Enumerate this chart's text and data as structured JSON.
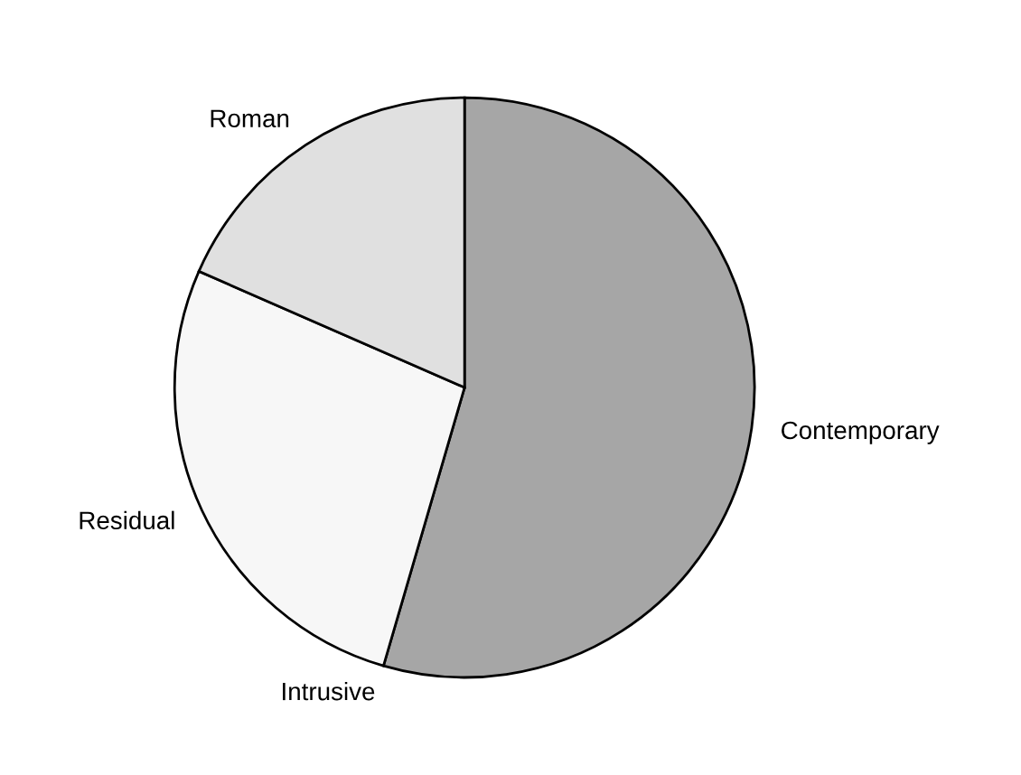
{
  "chart_data": {
    "type": "pie",
    "categories": [
      "Contemporary",
      "Intrusive",
      "Residual",
      "Roman"
    ],
    "values": [
      54.4,
      null,
      27.0,
      18.4
    ],
    "colors": [
      "#a6a6a6",
      "#ffffff",
      "#f7f7f7",
      "#e0e0e0"
    ]
  }
}
